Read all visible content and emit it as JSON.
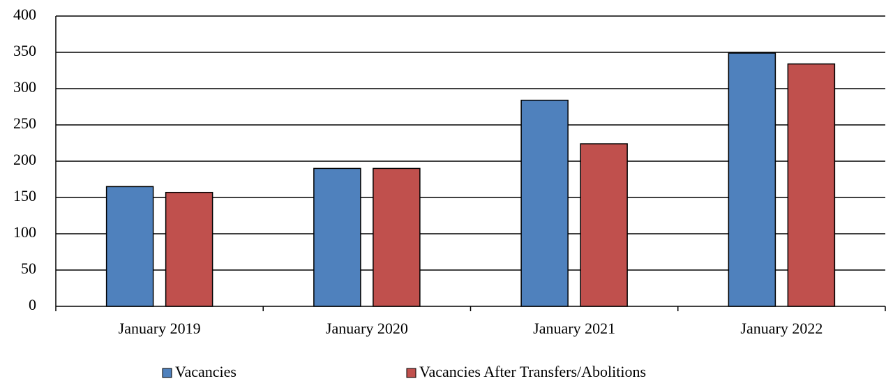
{
  "chart_data": {
    "type": "bar",
    "categories": [
      "January 2019",
      "January 2020",
      "January 2021",
      "January 2022"
    ],
    "series": [
      {
        "name": "Vacancies",
        "color": "#4f81bd",
        "values": [
          165,
          190,
          284,
          349
        ]
      },
      {
        "name": "Vacancies After Transfers/Abolitions",
        "color": "#c0504d",
        "values": [
          157,
          190,
          224,
          334
        ]
      }
    ],
    "ylim": [
      0,
      400
    ],
    "yticks": [
      0,
      50,
      100,
      150,
      200,
      250,
      300,
      350,
      400
    ],
    "grid": true,
    "legend": "bottom"
  }
}
